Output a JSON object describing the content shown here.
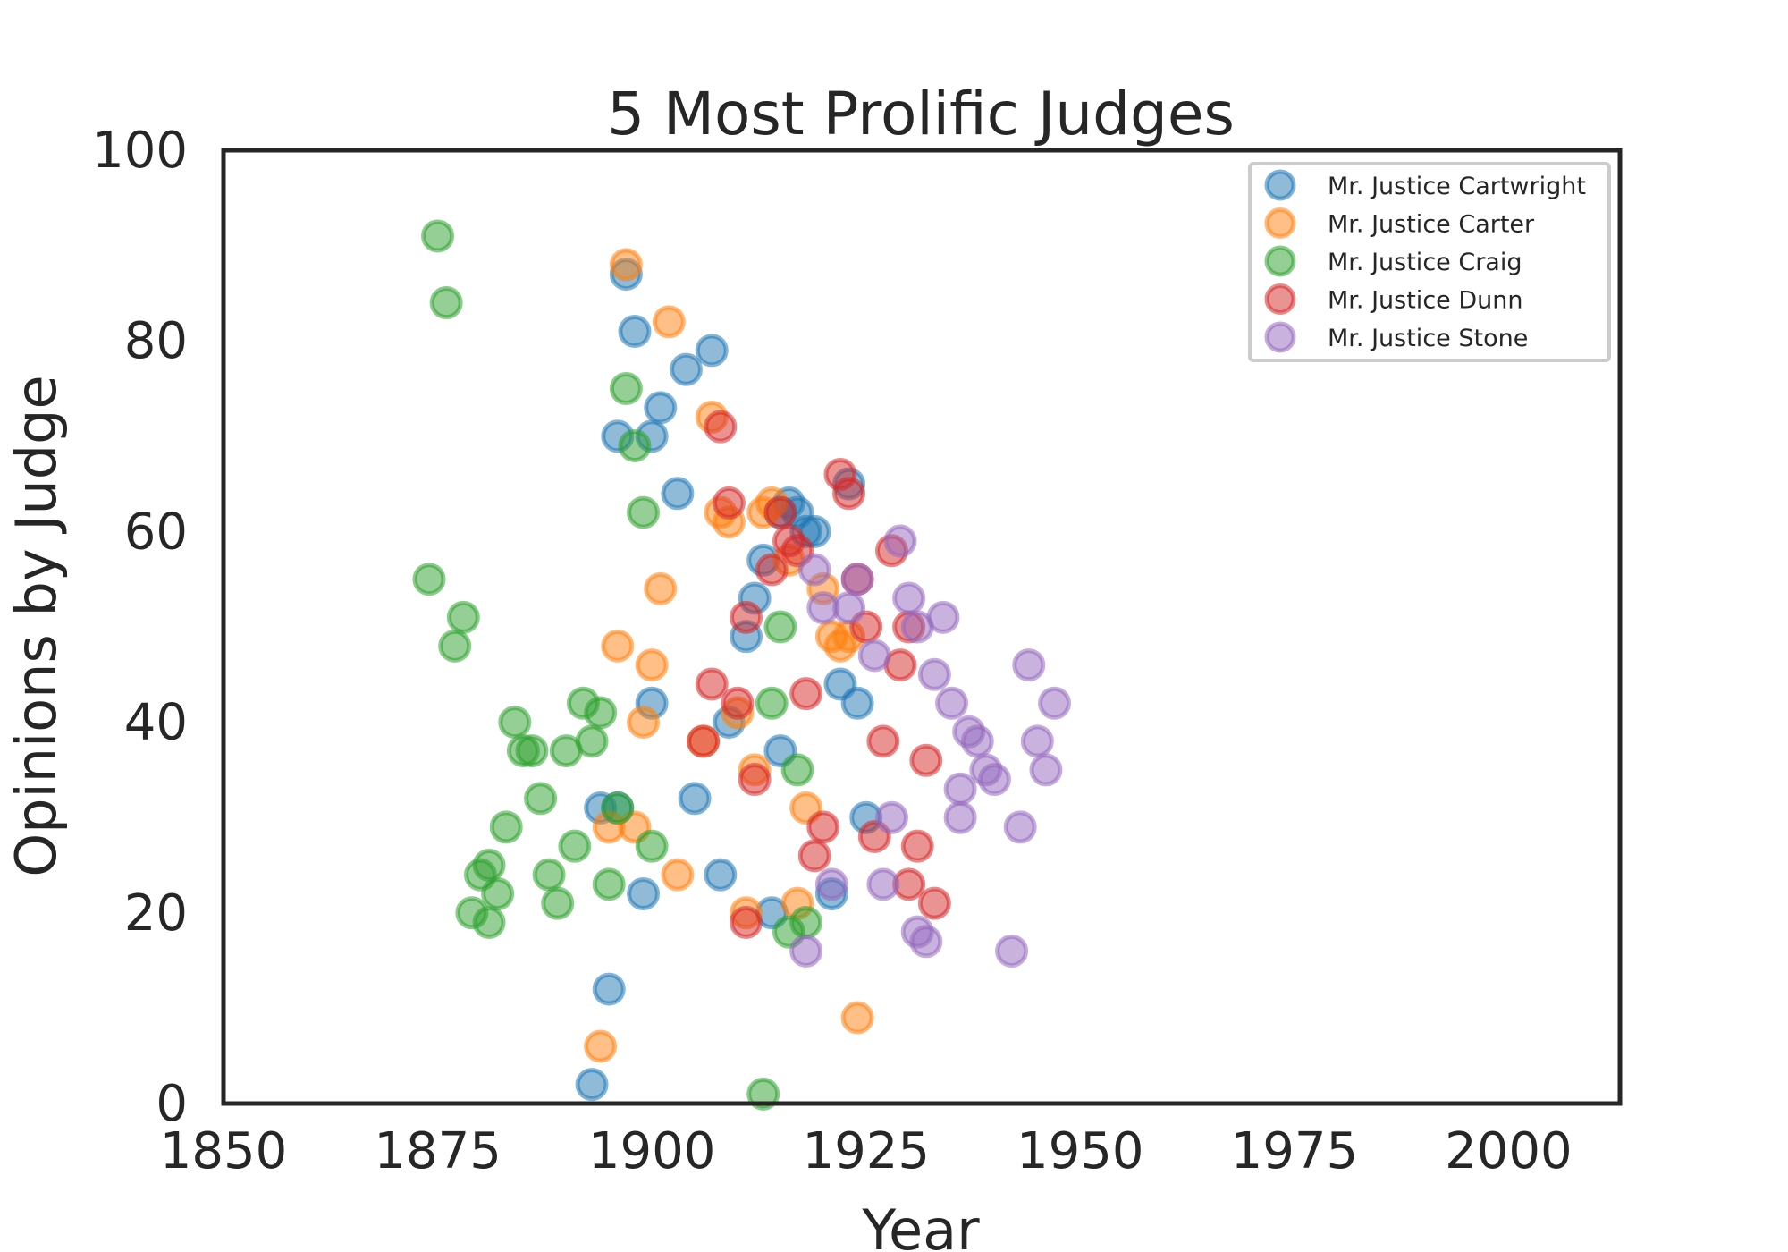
{
  "chart_data": {
    "type": "scatter",
    "title": "5 Most Prolific Judges",
    "xlabel": "Year",
    "ylabel": "Opinions by Judge",
    "xlim": [
      1850,
      2013
    ],
    "ylim": [
      0,
      100
    ],
    "xticks": [
      "1850",
      "1875",
      "1900",
      "1925",
      "1950",
      "1975",
      "2000"
    ],
    "yticks": [
      "0",
      "20",
      "40",
      "60",
      "80",
      "100"
    ],
    "grid": false,
    "legend_position": "top-right",
    "series": [
      {
        "name": "Mr. Justice Cartwright",
        "color": "#1f77b4",
        "points": [
          [
            1897,
            87
          ],
          [
            1898,
            81
          ],
          [
            1896,
            70
          ],
          [
            1900,
            70
          ],
          [
            1901,
            73
          ],
          [
            1904,
            77
          ],
          [
            1907,
            79
          ],
          [
            1903,
            64
          ],
          [
            1900,
            42
          ],
          [
            1899,
            22
          ],
          [
            1896,
            31
          ],
          [
            1894,
            31
          ],
          [
            1895,
            12
          ],
          [
            1893,
            2
          ],
          [
            1905,
            32
          ],
          [
            1908,
            24
          ],
          [
            1909,
            40
          ],
          [
            1911,
            49
          ],
          [
            1912,
            53
          ],
          [
            1913,
            57
          ],
          [
            1915,
            62
          ],
          [
            1916,
            63
          ],
          [
            1917,
            62
          ],
          [
            1918,
            60
          ],
          [
            1919,
            60
          ],
          [
            1922,
            44
          ],
          [
            1924,
            42
          ],
          [
            1921,
            22
          ],
          [
            1925,
            30
          ],
          [
            1914,
            20
          ],
          [
            1915,
            37
          ],
          [
            1923,
            65
          ]
        ]
      },
      {
        "name": "Mr. Justice Carter",
        "color": "#ff7f0e",
        "points": [
          [
            1897,
            88
          ],
          [
            1902,
            82
          ],
          [
            1907,
            72
          ],
          [
            1908,
            62
          ],
          [
            1909,
            61
          ],
          [
            1913,
            62
          ],
          [
            1914,
            63
          ],
          [
            1901,
            54
          ],
          [
            1896,
            48
          ],
          [
            1900,
            46
          ],
          [
            1899,
            40
          ],
          [
            1906,
            38
          ],
          [
            1910,
            41
          ],
          [
            1912,
            35
          ],
          [
            1895,
            29
          ],
          [
            1898,
            29
          ],
          [
            1903,
            24
          ],
          [
            1894,
            6
          ],
          [
            1911,
            20
          ],
          [
            1916,
            57
          ],
          [
            1918,
            31
          ],
          [
            1917,
            21
          ],
          [
            1921,
            49
          ],
          [
            1922,
            48
          ],
          [
            1923,
            49
          ],
          [
            1920,
            54
          ],
          [
            1924,
            9
          ]
        ]
      },
      {
        "name": "Mr. Justice Craig",
        "color": "#2ca02c",
        "points": [
          [
            1875,
            91
          ],
          [
            1876,
            84
          ],
          [
            1874,
            55
          ],
          [
            1878,
            51
          ],
          [
            1877,
            48
          ],
          [
            1897,
            75
          ],
          [
            1898,
            69
          ],
          [
            1899,
            62
          ],
          [
            1884,
            40
          ],
          [
            1885,
            37
          ],
          [
            1886,
            37
          ],
          [
            1890,
            37
          ],
          [
            1892,
            42
          ],
          [
            1894,
            41
          ],
          [
            1893,
            38
          ],
          [
            1887,
            32
          ],
          [
            1883,
            29
          ],
          [
            1891,
            27
          ],
          [
            1900,
            27
          ],
          [
            1896,
            31
          ],
          [
            1881,
            25
          ],
          [
            1880,
            24
          ],
          [
            1888,
            24
          ],
          [
            1882,
            22
          ],
          [
            1889,
            21
          ],
          [
            1879,
            20
          ],
          [
            1881,
            19
          ],
          [
            1895,
            23
          ],
          [
            1913,
            1
          ],
          [
            1914,
            42
          ],
          [
            1915,
            50
          ],
          [
            1917,
            35
          ],
          [
            1916,
            18
          ],
          [
            1918,
            19
          ]
        ]
      },
      {
        "name": "Mr. Justice Dunn",
        "color": "#d62728",
        "points": [
          [
            1908,
            71
          ],
          [
            1909,
            63
          ],
          [
            1906,
            38
          ],
          [
            1907,
            44
          ],
          [
            1910,
            42
          ],
          [
            1911,
            51
          ],
          [
            1912,
            34
          ],
          [
            1911,
            19
          ],
          [
            1914,
            56
          ],
          [
            1915,
            62
          ],
          [
            1916,
            59
          ],
          [
            1917,
            58
          ],
          [
            1918,
            43
          ],
          [
            1919,
            26
          ],
          [
            1920,
            29
          ],
          [
            1922,
            66
          ],
          [
            1923,
            64
          ],
          [
            1924,
            55
          ],
          [
            1925,
            50
          ],
          [
            1926,
            28
          ],
          [
            1927,
            38
          ],
          [
            1928,
            58
          ],
          [
            1929,
            46
          ],
          [
            1930,
            50
          ],
          [
            1931,
            27
          ],
          [
            1932,
            36
          ],
          [
            1933,
            21
          ],
          [
            1930,
            23
          ]
        ]
      },
      {
        "name": "Mr. Justice Stone",
        "color": "#9467bd",
        "points": [
          [
            1919,
            56
          ],
          [
            1920,
            52
          ],
          [
            1923,
            52
          ],
          [
            1924,
            55
          ],
          [
            1926,
            47
          ],
          [
            1929,
            59
          ],
          [
            1930,
            53
          ],
          [
            1931,
            50
          ],
          [
            1934,
            51
          ],
          [
            1933,
            45
          ],
          [
            1935,
            42
          ],
          [
            1937,
            39
          ],
          [
            1938,
            38
          ],
          [
            1939,
            35
          ],
          [
            1940,
            34
          ],
          [
            1936,
            33
          ],
          [
            1936,
            30
          ],
          [
            1928,
            30
          ],
          [
            1927,
            23
          ],
          [
            1921,
            23
          ],
          [
            1918,
            16
          ],
          [
            1931,
            18
          ],
          [
            1932,
            17
          ],
          [
            1943,
            29
          ],
          [
            1945,
            38
          ],
          [
            1944,
            46
          ],
          [
            1946,
            35
          ],
          [
            1947,
            42
          ],
          [
            1942,
            16
          ]
        ]
      }
    ]
  }
}
